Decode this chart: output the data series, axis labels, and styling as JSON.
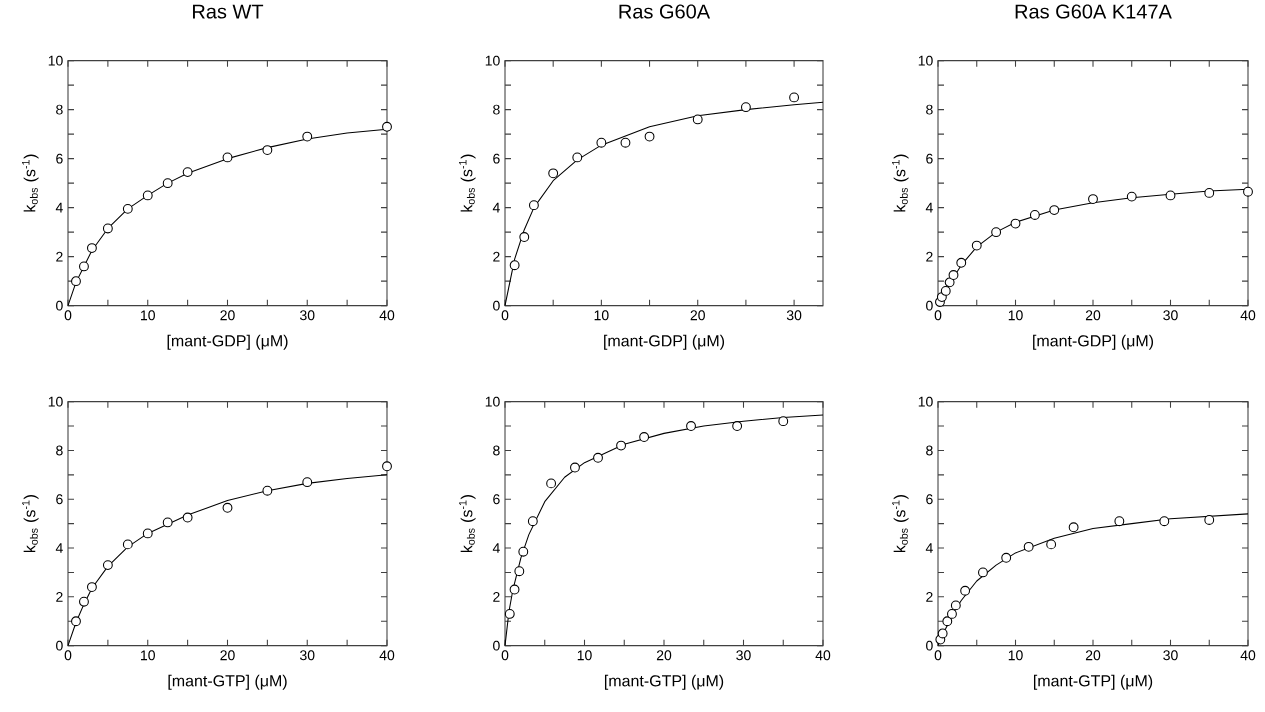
{
  "chart_data": [
    {
      "type": "scatter",
      "title": "Ras WT",
      "xlabel": "[mant-GDP] (μM)",
      "ylabel": "k$_{obs}$ (s$^{-1}$)",
      "xlim": [
        0,
        40
      ],
      "ylim": [
        0,
        10
      ],
      "xticks": [
        0,
        {
          "value": 5,
          "label": null
        },
        10,
        {
          "value": 15,
          "label": null
        },
        20,
        {
          "value": 25,
          "label": null
        },
        30,
        {
          "value": 35,
          "label": null
        },
        40
      ],
      "yticks": [
        0,
        {
          "value": 1,
          "label": null
        },
        2,
        {
          "value": 3,
          "label": null
        },
        4,
        {
          "value": 5,
          "label": null
        },
        6,
        {
          "value": 7,
          "label": null
        },
        8,
        {
          "value": 9,
          "label": null
        },
        10
      ],
      "series": [
        {
          "marker": "circle",
          "color": "#000000",
          "x": [
            1,
            2,
            3,
            5,
            7.5,
            10,
            12.5,
            15,
            20,
            25,
            30,
            40
          ],
          "values": [
            1.0,
            1.6,
            2.35,
            3.15,
            3.95,
            4.5,
            5.0,
            5.45,
            6.05,
            6.35,
            6.9,
            7.3
          ]
        },
        {
          "type": "line",
          "color": "#000000",
          "x": [
            0,
            1,
            2,
            3,
            5,
            7.5,
            10,
            12.5,
            15,
            20,
            25,
            30,
            35,
            40
          ],
          "values": [
            0,
            0.95,
            1.6,
            2.25,
            3.15,
            3.95,
            4.5,
            5.0,
            5.4,
            6.0,
            6.45,
            6.8,
            7.05,
            7.2
          ]
        }
      ]
    },
    {
      "type": "scatter",
      "title": "Ras G60A",
      "xlabel": "[mant-GDP] (μM)",
      "ylabel": "k$_{obs}$ (s$^{-1}$)",
      "xlim": [
        0,
        33
      ],
      "ylim": [
        0,
        10
      ],
      "xticks": [
        0,
        {
          "value": 5,
          "label": null
        },
        10,
        {
          "value": 15,
          "label": null
        },
        20,
        {
          "value": 25,
          "label": null
        },
        30
      ],
      "yticks": [
        0,
        {
          "value": 1,
          "label": null
        },
        2,
        {
          "value": 3,
          "label": null
        },
        4,
        {
          "value": 5,
          "label": null
        },
        6,
        {
          "value": 7,
          "label": null
        },
        8,
        {
          "value": 9,
          "label": null
        },
        10
      ],
      "series": [
        {
          "marker": "circle",
          "color": "#000000",
          "x": [
            1,
            2,
            3,
            5,
            7.5,
            10,
            12.5,
            15,
            20,
            25,
            30
          ],
          "values": [
            1.65,
            2.8,
            4.1,
            5.4,
            6.05,
            6.65,
            6.65,
            6.9,
            7.6,
            8.1,
            8.5
          ]
        },
        {
          "type": "line",
          "color": "#000000",
          "x": [
            0,
            1,
            2,
            3,
            5,
            7.5,
            10,
            15,
            20,
            25,
            30,
            33
          ],
          "values": [
            0,
            1.9,
            3.1,
            4.0,
            5.1,
            5.95,
            6.55,
            7.3,
            7.75,
            8.0,
            8.2,
            8.3
          ]
        }
      ]
    },
    {
      "type": "scatter",
      "title": "Ras G60A K147A",
      "xlabel": "[mant-GDP] (μM)",
      "ylabel": "k$_{obs}$ (s$^{-1}$)",
      "xlim": [
        0,
        40
      ],
      "ylim": [
        0,
        10
      ],
      "xticks": [
        0,
        {
          "value": 5,
          "label": null
        },
        10,
        {
          "value": 15,
          "label": null
        },
        20,
        {
          "value": 25,
          "label": null
        },
        30,
        {
          "value": 35,
          "label": null
        },
        40
      ],
      "yticks": [
        0,
        {
          "value": 1,
          "label": null
        },
        2,
        {
          "value": 3,
          "label": null
        },
        4,
        {
          "value": 5,
          "label": null
        },
        6,
        {
          "value": 7,
          "label": null
        },
        8,
        {
          "value": 9,
          "label": null
        },
        10
      ],
      "series": [
        {
          "marker": "circle",
          "color": "#000000",
          "x": [
            0.25,
            0.5,
            1,
            1.5,
            2,
            3,
            5,
            7.5,
            10,
            12.5,
            15,
            20,
            25,
            30,
            35,
            40
          ],
          "values": [
            0.15,
            0.35,
            0.6,
            0.95,
            1.25,
            1.75,
            2.45,
            3.0,
            3.35,
            3.7,
            3.9,
            4.35,
            4.45,
            4.5,
            4.6,
            4.65
          ]
        },
        {
          "type": "line",
          "color": "#000000",
          "x": [
            0,
            1,
            2,
            3,
            5,
            7.5,
            10,
            15,
            20,
            25,
            30,
            35,
            40
          ],
          "values": [
            0,
            0.6,
            1.15,
            1.65,
            2.4,
            3.0,
            3.4,
            3.9,
            4.2,
            4.4,
            4.55,
            4.68,
            4.75
          ]
        }
      ]
    },
    {
      "type": "scatter",
      "xlabel": "[mant-GTP] (μM)",
      "ylabel": "k$_{obs}$ (s$^{-1}$)",
      "xlim": [
        0,
        40
      ],
      "ylim": [
        0,
        10
      ],
      "xticks": [
        0,
        {
          "value": 5,
          "label": null
        },
        10,
        {
          "value": 15,
          "label": null
        },
        20,
        {
          "value": 25,
          "label": null
        },
        30,
        {
          "value": 35,
          "label": null
        },
        40
      ],
      "yticks": [
        0,
        {
          "value": 1,
          "label": null
        },
        2,
        {
          "value": 3,
          "label": null
        },
        4,
        {
          "value": 5,
          "label": null
        },
        6,
        {
          "value": 7,
          "label": null
        },
        8,
        {
          "value": 9,
          "label": null
        },
        10
      ],
      "series": [
        {
          "marker": "circle",
          "color": "#000000",
          "x": [
            1,
            2,
            3,
            5,
            7.5,
            10,
            12.5,
            15,
            20,
            25,
            30,
            40
          ],
          "values": [
            1.0,
            1.8,
            2.4,
            3.3,
            4.15,
            4.6,
            5.05,
            5.25,
            5.65,
            6.35,
            6.7,
            7.35
          ]
        },
        {
          "type": "line",
          "color": "#000000",
          "x": [
            0,
            1,
            2,
            3,
            5,
            7.5,
            10,
            15,
            20,
            25,
            30,
            35,
            40
          ],
          "values": [
            0,
            0.95,
            1.7,
            2.35,
            3.25,
            4.05,
            4.6,
            5.35,
            5.95,
            6.35,
            6.65,
            6.85,
            7.0
          ]
        }
      ]
    },
    {
      "type": "scatter",
      "xlabel": "[mant-GTP] (μM)",
      "ylabel": "k$_{obs}$ (s$^{-1}$)",
      "xlim": [
        0,
        40
      ],
      "ylim": [
        0,
        10
      ],
      "xticks": [
        0,
        {
          "value": 5,
          "label": null
        },
        10,
        {
          "value": 15,
          "label": null
        },
        20,
        {
          "value": 25,
          "label": null
        },
        30,
        {
          "value": 35,
          "label": null
        },
        40
      ],
      "yticks": [
        0,
        {
          "value": 1,
          "label": null
        },
        2,
        {
          "value": 3,
          "label": null
        },
        4,
        {
          "value": 5,
          "label": null
        },
        6,
        {
          "value": 7,
          "label": null
        },
        8,
        {
          "value": 9,
          "label": null
        },
        10
      ],
      "series": [
        {
          "marker": "circle",
          "color": "#000000",
          "x": [
            0.6,
            1.2,
            1.8,
            2.3,
            3.5,
            5.8,
            8.8,
            11.7,
            14.6,
            17.5,
            23.4,
            29.2,
            35
          ],
          "values": [
            1.3,
            2.3,
            3.05,
            3.85,
            5.1,
            6.65,
            7.3,
            7.7,
            8.2,
            8.55,
            9.0,
            9.0,
            9.2
          ]
        },
        {
          "type": "line",
          "color": "#000000",
          "x": [
            0,
            0.5,
            1,
            2,
            3,
            5,
            7.5,
            10,
            15,
            20,
            25,
            30,
            35,
            40
          ],
          "values": [
            0,
            1.4,
            2.3,
            3.6,
            4.55,
            5.9,
            6.9,
            7.5,
            8.25,
            8.7,
            9.0,
            9.2,
            9.35,
            9.45
          ]
        }
      ]
    },
    {
      "type": "scatter",
      "xlabel": "[mant-GTP] (μM)",
      "ylabel": "k$_{obs}$ (s$^{-1}$)",
      "xlim": [
        0,
        40
      ],
      "ylim": [
        0,
        10
      ],
      "xticks": [
        0,
        {
          "value": 5,
          "label": null
        },
        10,
        {
          "value": 15,
          "label": null
        },
        20,
        {
          "value": 25,
          "label": null
        },
        30,
        {
          "value": 35,
          "label": null
        },
        40
      ],
      "yticks": [
        0,
        {
          "value": 1,
          "label": null
        },
        2,
        {
          "value": 3,
          "label": null
        },
        4,
        {
          "value": 5,
          "label": null
        },
        6,
        {
          "value": 7,
          "label": null
        },
        8,
        {
          "value": 9,
          "label": null
        },
        10
      ],
      "series": [
        {
          "marker": "circle",
          "color": "#000000",
          "x": [
            0.3,
            0.6,
            1.2,
            1.8,
            2.3,
            3.5,
            5.8,
            8.8,
            11.7,
            14.6,
            17.5,
            23.4,
            29.2,
            35
          ],
          "values": [
            0.25,
            0.5,
            1.0,
            1.3,
            1.65,
            2.25,
            3.0,
            3.6,
            4.05,
            4.15,
            4.85,
            5.1,
            5.1,
            5.15
          ]
        },
        {
          "type": "line",
          "color": "#000000",
          "x": [
            0,
            1,
            2,
            3,
            5,
            7.5,
            10,
            15,
            20,
            25,
            30,
            35,
            40
          ],
          "values": [
            0,
            0.7,
            1.35,
            1.85,
            2.65,
            3.3,
            3.8,
            4.4,
            4.8,
            5.0,
            5.2,
            5.3,
            5.4
          ]
        }
      ]
    }
  ]
}
